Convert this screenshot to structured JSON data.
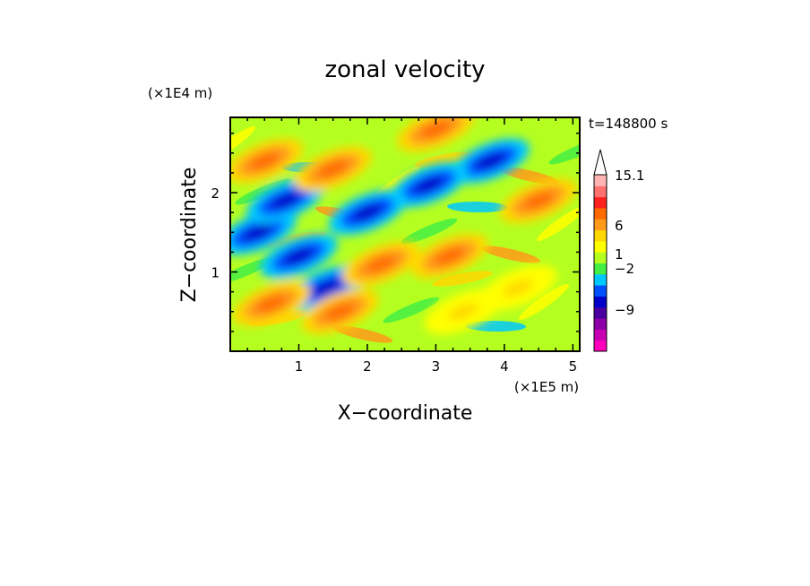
{
  "chart_data": {
    "type": "heatmap",
    "title": "zonal velocity",
    "xlabel": "X−coordinate",
    "ylabel": "Z−coordinate",
    "x_unit": "(×1E5 m)",
    "y_unit": "(×1E4 m)",
    "time_label": "t=148800 s",
    "xlim": [
      0.0,
      5.1
    ],
    "ylim": [
      0.0,
      2.95
    ],
    "x_ticks": [
      "1",
      "2",
      "3",
      "4",
      "5"
    ],
    "y_ticks": [
      "1",
      "2"
    ],
    "colorbar_labels": [
      "15.1",
      "6",
      "1",
      "−2",
      "−9"
    ],
    "colorbar_colors": [
      "#ff00bb",
      "#c800b4",
      "#8c00a8",
      "#4a00a0",
      "#0000c8",
      "#0050ff",
      "#00c8ff",
      "#44ee44",
      "#b4ff20",
      "#ffff00",
      "#ffd700",
      "#ff9a1a",
      "#ff6a00",
      "#ff2020",
      "#ff7070",
      "#ffb4b4"
    ],
    "colorbar_extend": "max",
    "features": [
      {
        "x": 3.8,
        "z": 2.4,
        "level": "min"
      },
      {
        "x": 2.9,
        "z": 2.1,
        "level": "min"
      },
      {
        "x": 2.0,
        "z": 1.75,
        "level": "min"
      },
      {
        "x": 1.0,
        "z": 1.2,
        "level": "min"
      },
      {
        "x": 1.4,
        "z": 0.8,
        "level": "min"
      },
      {
        "x": 0.4,
        "z": 1.5,
        "level": "min"
      },
      {
        "x": 0.8,
        "z": 1.9,
        "level": "min"
      },
      {
        "x": 3.0,
        "z": 2.8,
        "level": "max"
      },
      {
        "x": 1.5,
        "z": 2.3,
        "level": "max"
      },
      {
        "x": 0.5,
        "z": 2.4,
        "level": "max"
      },
      {
        "x": 2.2,
        "z": 1.1,
        "level": "max"
      },
      {
        "x": 1.6,
        "z": 0.5,
        "level": "max"
      },
      {
        "x": 3.2,
        "z": 1.2,
        "level": "max"
      },
      {
        "x": 4.5,
        "z": 1.9,
        "level": "max"
      },
      {
        "x": 0.6,
        "z": 0.6,
        "level": "max"
      },
      {
        "x": 3.4,
        "z": 0.5,
        "level": "mid"
      },
      {
        "x": 4.2,
        "z": 0.8,
        "level": "mid"
      }
    ]
  }
}
